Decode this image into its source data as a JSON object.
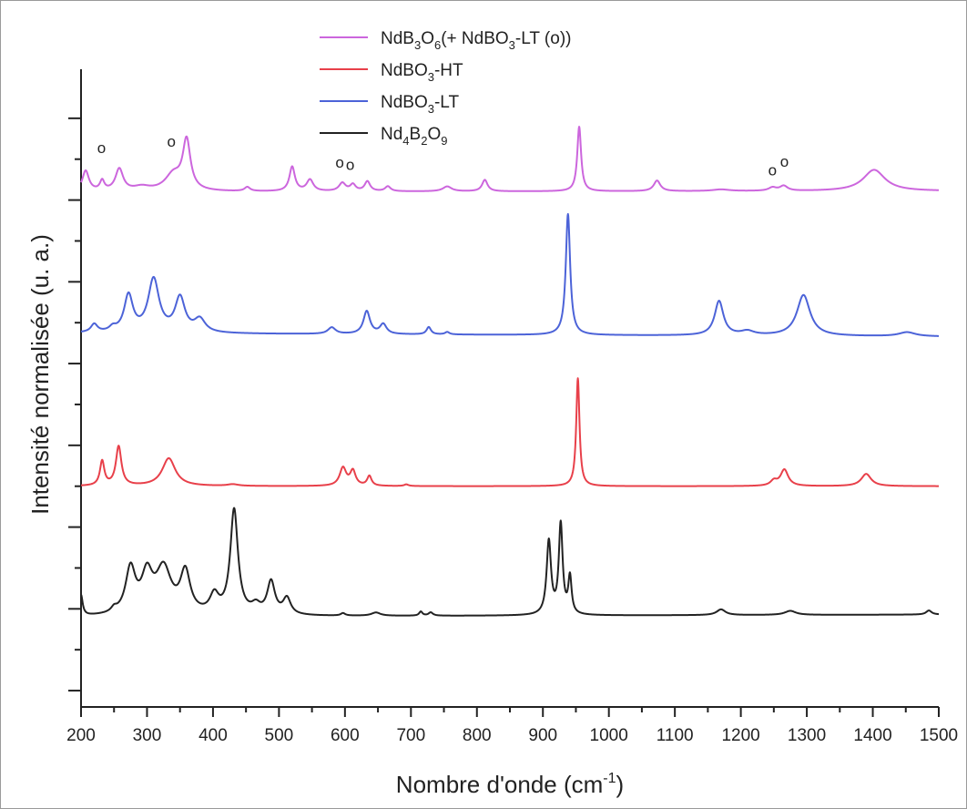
{
  "chart_data": {
    "type": "line",
    "xlabel_main": "Nombre d'onde (cm",
    "xlabel_sup": "-1",
    "xlabel_end": ")",
    "ylabel": "Intensité normalisée (u. a.)",
    "xlim": [
      200,
      1500
    ],
    "ylim": [
      -1.2,
      6.6
    ],
    "xticks": [
      200,
      300,
      400,
      500,
      600,
      700,
      800,
      900,
      1000,
      1100,
      1200,
      1300,
      1400,
      1500
    ],
    "xtick_labels": [
      "200",
      "300",
      "400",
      "500",
      "600",
      "700",
      "800",
      "900",
      "1000",
      "1100",
      "1200",
      "1300",
      "1400",
      "1500"
    ],
    "grid": false,
    "legend_position": "top-center",
    "legend": [
      {
        "series": 0,
        "parts": [
          [
            "NdB",
            ""
          ],
          [
            "3",
            "sub"
          ],
          [
            "O",
            ""
          ],
          [
            "6",
            "sub"
          ],
          [
            "(+ NdBO",
            ""
          ],
          [
            "3",
            "sub"
          ],
          [
            "-LT (o))",
            ""
          ]
        ]
      },
      {
        "series": 1,
        "parts": [
          [
            "NdBO",
            ""
          ],
          [
            "3",
            "sub"
          ],
          [
            "-HT",
            ""
          ]
        ]
      },
      {
        "series": 2,
        "parts": [
          [
            "NdBO",
            ""
          ],
          [
            "3",
            "sub"
          ],
          [
            "-LT",
            ""
          ]
        ]
      },
      {
        "series": 3,
        "parts": [
          [
            "Nd",
            ""
          ],
          [
            "4",
            "sub"
          ],
          [
            "B",
            ""
          ],
          [
            "2",
            "sub"
          ],
          [
            "O",
            ""
          ],
          [
            "9",
            "sub"
          ]
        ]
      }
    ],
    "series": [
      {
        "color": "#cc66dd",
        "baseline": 5.1,
        "end_baseline": 5.11,
        "peaks": [
          [
            207,
            0.25,
            6
          ],
          [
            232,
            0.12,
            4
          ],
          [
            258,
            0.27,
            7
          ],
          [
            292,
            0.05,
            15
          ],
          [
            340,
            0.2,
            15
          ],
          [
            360,
            0.6,
            7
          ],
          [
            452,
            0.05,
            5
          ],
          [
            520,
            0.3,
            5
          ],
          [
            547,
            0.14,
            6
          ],
          [
            596,
            0.1,
            6
          ],
          [
            612,
            0.08,
            5
          ],
          [
            634,
            0.12,
            5
          ],
          [
            665,
            0.06,
            5
          ],
          [
            755,
            0.06,
            8
          ],
          [
            812,
            0.14,
            5
          ],
          [
            955,
            0.79,
            3.5
          ],
          [
            1073,
            0.13,
            6
          ],
          [
            1170,
            0.02,
            15
          ],
          [
            1248,
            0.04,
            7
          ],
          [
            1265,
            0.06,
            7
          ],
          [
            1402,
            0.26,
            20
          ]
        ],
        "markers": [
          [
            231,
            0.32
          ],
          [
            337,
            0.3
          ],
          [
            592,
            0.21
          ],
          [
            608,
            0.19
          ],
          [
            1248,
            0.14
          ],
          [
            1266,
            0.23
          ]
        ],
        "marker_text": "o"
      },
      {
        "color": "#e8404a",
        "baseline": 1.5,
        "end_baseline": 1.5,
        "peaks": [
          [
            232,
            0.3,
            4
          ],
          [
            257,
            0.48,
            5
          ],
          [
            333,
            0.34,
            12
          ],
          [
            430,
            0.02,
            10
          ],
          [
            597,
            0.22,
            6
          ],
          [
            612,
            0.18,
            5
          ],
          [
            637,
            0.12,
            4
          ],
          [
            693,
            0.02,
            4
          ],
          [
            953,
            1.32,
            3
          ],
          [
            1250,
            0.06,
            6
          ],
          [
            1266,
            0.2,
            7
          ],
          [
            1390,
            0.15,
            9
          ]
        ]
      },
      {
        "color": "#4c63d8",
        "baseline": 3.37,
        "end_baseline": 3.33,
        "peaks": [
          [
            220,
            0.1,
            6
          ],
          [
            248,
            0.05,
            6
          ],
          [
            272,
            0.45,
            8
          ],
          [
            310,
            0.65,
            10
          ],
          [
            350,
            0.42,
            9
          ],
          [
            380,
            0.16,
            10
          ],
          [
            580,
            0.08,
            7
          ],
          [
            633,
            0.28,
            6
          ],
          [
            658,
            0.12,
            6
          ],
          [
            727,
            0.09,
            4
          ],
          [
            755,
            0.03,
            4
          ],
          [
            938,
            1.48,
            4
          ],
          [
            1167,
            0.42,
            8
          ],
          [
            1210,
            0.05,
            12
          ],
          [
            1295,
            0.5,
            12
          ],
          [
            1452,
            0.05,
            15
          ]
        ]
      },
      {
        "color": "#222222",
        "baseline": -0.1,
        "end_baseline": -0.07,
        "peaks": [
          [
            200,
            0.25,
            3
          ],
          [
            250,
            0.05,
            5
          ],
          [
            275,
            0.55,
            9
          ],
          [
            300,
            0.45,
            10
          ],
          [
            325,
            0.55,
            14
          ],
          [
            358,
            0.5,
            9
          ],
          [
            402,
            0.22,
            8
          ],
          [
            432,
            1.28,
            7
          ],
          [
            465,
            0.1,
            8
          ],
          [
            488,
            0.4,
            7
          ],
          [
            512,
            0.2,
            7
          ],
          [
            597,
            0.03,
            4
          ],
          [
            647,
            0.04,
            8
          ],
          [
            715,
            0.05,
            3
          ],
          [
            730,
            0.04,
            4
          ],
          [
            909,
            0.9,
            4
          ],
          [
            927,
            1.1,
            3.5
          ],
          [
            941,
            0.45,
            3
          ],
          [
            1170,
            0.07,
            8
          ],
          [
            1275,
            0.05,
            10
          ],
          [
            1485,
            0.05,
            5
          ]
        ]
      }
    ]
  }
}
